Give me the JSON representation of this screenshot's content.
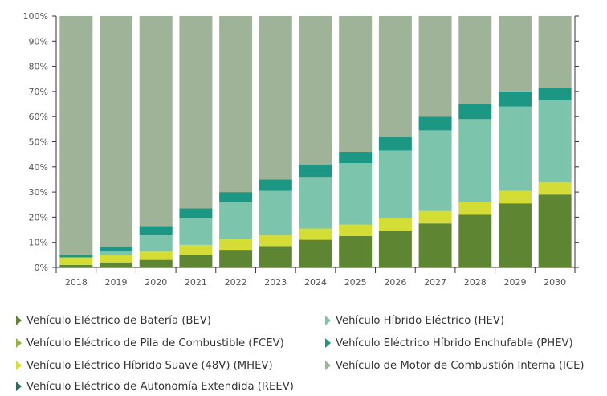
{
  "chart_data": {
    "type": "bar",
    "stacked": true,
    "ylim": [
      0,
      100
    ],
    "yticks": [
      0,
      10,
      20,
      30,
      40,
      50,
      60,
      70,
      80,
      90,
      100
    ],
    "ytick_labels": [
      "0%",
      "10%",
      "20%",
      "30%",
      "40%",
      "50%",
      "60%",
      "70%",
      "80%",
      "90%",
      "100%"
    ],
    "categories": [
      "2018",
      "2019",
      "2020",
      "2021",
      "2022",
      "2023",
      "2024",
      "2025",
      "2026",
      "2027",
      "2028",
      "2029",
      "2030"
    ],
    "grid": false,
    "legend_position": "bottom",
    "series": [
      {
        "name": "Vehículo Eléctrico de Batería (BEV)",
        "color": "#5e8632",
        "values": [
          1,
          2,
          3,
          5,
          7,
          8.5,
          11,
          12.5,
          14.5,
          17.5,
          21,
          25.5,
          29
        ]
      },
      {
        "name": "Vehículo Eléctrico de Autonomía Extendida (REEV)",
        "color": "#2b6a5c",
        "values": [
          0,
          0,
          0,
          0,
          0,
          0,
          0,
          0,
          0,
          0,
          0,
          0,
          0
        ]
      },
      {
        "name": "Vehículo Eléctrico de Pila de Combustible  (FCEV)",
        "color": "#94b640",
        "values": [
          0,
          0,
          0,
          0,
          0,
          0,
          0,
          0,
          0,
          0,
          0,
          0,
          0
        ]
      },
      {
        "name": "Vehículo Eléctrico Híbrido Suave (48V)  (MHEV)",
        "color": "#d4dc36",
        "values": [
          3,
          3,
          3.5,
          4,
          4.5,
          4.5,
          4.5,
          4.5,
          5,
          5,
          5,
          5,
          5
        ]
      },
      {
        "name": "Vehículo Híbrido Eléctrico (HEV)",
        "color": "#7cc4ab",
        "values": [
          0,
          1.5,
          6.5,
          10.5,
          14.5,
          17.5,
          20.5,
          24.5,
          27,
          32,
          33,
          33.5,
          32.5
        ]
      },
      {
        "name": "Vehículo Eléctrico Híbrido Enchufable (PHEV)",
        "color": "#1c9784",
        "values": [
          1,
          1.5,
          3.5,
          4,
          4,
          4.5,
          5,
          4.5,
          5.5,
          5.5,
          6,
          6,
          5
        ]
      },
      {
        "name": "Vehículo de Motor de Combustión Interna (ICE)",
        "color": "#9eb398",
        "values": [
          95,
          92,
          83.5,
          76.5,
          70,
          65,
          59,
          54,
          48,
          40,
          35,
          30,
          28.5
        ]
      }
    ],
    "legend_order": [
      0,
      4,
      2,
      5,
      3,
      6,
      1
    ]
  }
}
